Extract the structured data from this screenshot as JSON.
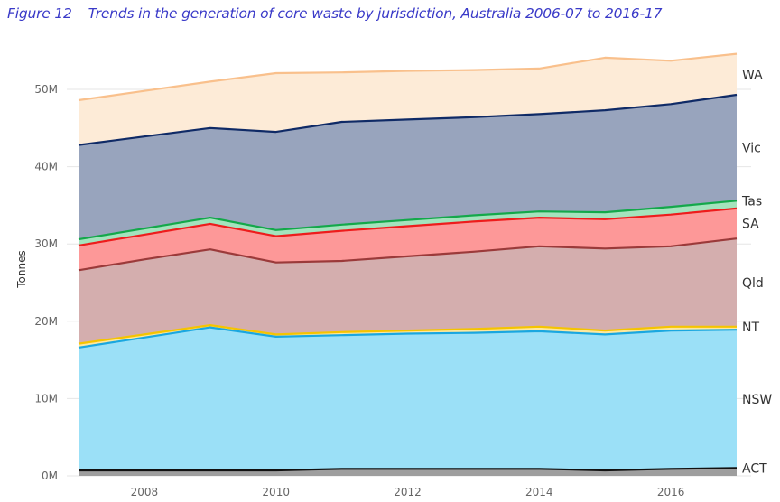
{
  "figure": {
    "number": "Figure 12",
    "title": "Trends in the generation of core waste by jurisdiction, Australia 2006-07 to 2016-17"
  },
  "chart_data": {
    "type": "area",
    "stacked": true,
    "title": "Trends in the generation of core waste by jurisdiction, Australia 2006-07 to 2016-17",
    "xlabel": "",
    "ylabel": "Tonnes",
    "x": [
      2007,
      2008,
      2009,
      2010,
      2011,
      2012,
      2013,
      2014,
      2015,
      2016,
      2017
    ],
    "xlim": [
      2007,
      2017
    ],
    "ylim": [
      0,
      52
    ],
    "x_ticks": [
      2008,
      2010,
      2012,
      2014,
      2016
    ],
    "x_tick_labels": [
      "2008",
      "2010",
      "2012",
      "2014",
      "2016"
    ],
    "y_ticks": [
      0,
      10,
      20,
      30,
      40,
      50
    ],
    "y_tick_labels": [
      "0M",
      "10M",
      "20M",
      "30M",
      "40M",
      "50M"
    ],
    "units": "million tonnes",
    "grid": true,
    "legend": "inline-right",
    "series": [
      {
        "name": "ACT",
        "fill": "#9e9e9e",
        "line": "#111111",
        "values": [
          0.7,
          0.7,
          0.7,
          0.7,
          0.9,
          0.9,
          0.9,
          0.9,
          0.7,
          0.9,
          1.0
        ]
      },
      {
        "name": "NSW",
        "fill": "#9be0f7",
        "line": "#1aa7e0",
        "values": [
          15.9,
          17.2,
          18.5,
          17.3,
          17.3,
          17.5,
          17.6,
          17.8,
          17.6,
          17.9,
          17.9
        ]
      },
      {
        "name": "NT",
        "fill": "#fde8a0",
        "line": "#f5c400",
        "values": [
          0.5,
          0.4,
          0.3,
          0.3,
          0.4,
          0.4,
          0.5,
          0.6,
          0.5,
          0.5,
          0.4
        ]
      },
      {
        "name": "Qld",
        "fill": "#d4aeae",
        "line": "#9b3a3a",
        "values": [
          9.5,
          9.7,
          9.8,
          9.3,
          9.2,
          9.6,
          10.0,
          10.4,
          10.6,
          10.4,
          11.4
        ]
      },
      {
        "name": "SA",
        "fill": "#fd9898",
        "line": "#ee1c1c",
        "values": [
          3.2,
          3.2,
          3.3,
          3.4,
          3.9,
          3.9,
          3.9,
          3.7,
          3.8,
          4.1,
          3.9
        ]
      },
      {
        "name": "Tas",
        "fill": "#a4e3bd",
        "line": "#13a84a",
        "values": [
          0.8,
          0.8,
          0.8,
          0.8,
          0.8,
          0.8,
          0.8,
          0.8,
          0.9,
          1.0,
          1.0
        ]
      },
      {
        "name": "Vic",
        "fill": "#98a4bd",
        "line": "#0f2a66",
        "values": [
          12.2,
          11.9,
          11.6,
          12.7,
          13.3,
          13.0,
          12.7,
          12.6,
          13.2,
          13.3,
          13.7
        ]
      },
      {
        "name": "WA",
        "fill": "#fdebd7",
        "line": "#f9c08c",
        "values": [
          5.8,
          5.9,
          6.0,
          7.6,
          6.4,
          6.3,
          6.1,
          5.9,
          6.8,
          5.6,
          5.3
        ]
      }
    ]
  }
}
